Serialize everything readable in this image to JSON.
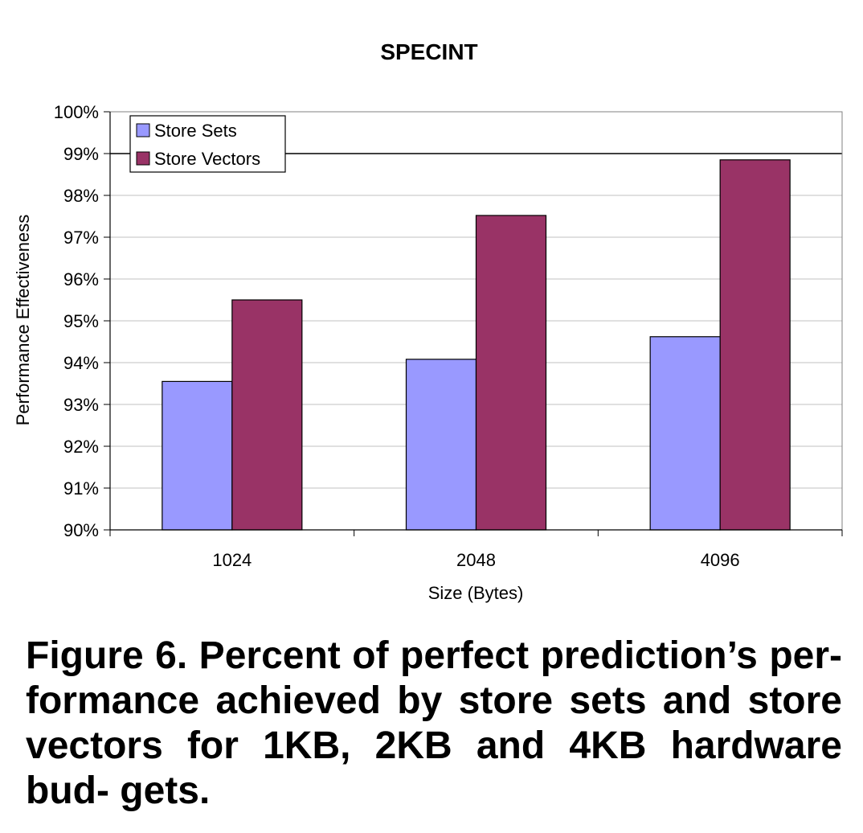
{
  "chart_data": {
    "type": "bar",
    "title": "SPECINT",
    "xlabel": "Size (Bytes)",
    "ylabel": "Performance Effectiveness",
    "categories": [
      "1024",
      "2048",
      "4096"
    ],
    "series": [
      {
        "name": "Store Sets",
        "values": [
          93.55,
          94.08,
          94.62
        ],
        "color": "#9999ff"
      },
      {
        "name": "Store Vectors",
        "values": [
          95.5,
          97.52,
          98.85
        ],
        "color": "#993366"
      }
    ],
    "ylim": [
      90,
      100
    ],
    "yticks": [
      "90%",
      "91%",
      "92%",
      "93%",
      "94%",
      "95%",
      "96%",
      "97%",
      "98%",
      "99%",
      "100%"
    ],
    "grid": true,
    "legend": "top-left",
    "highlight_line": 99
  },
  "caption": {
    "text": "Figure 6. Percent of perfect prediction’s per- formance achieved by store sets and store vectors for 1KB, 2KB and 4KB hardware bud- gets."
  }
}
